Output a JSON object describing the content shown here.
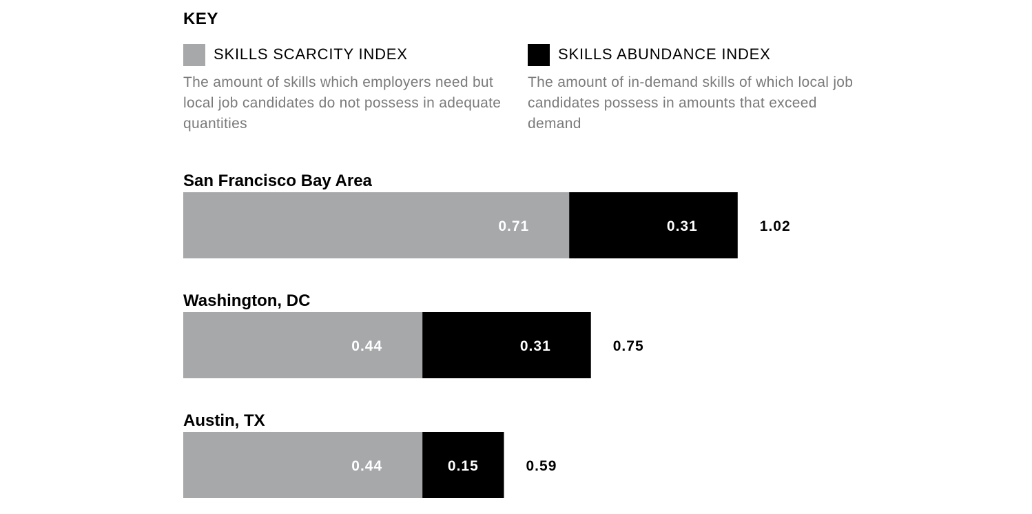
{
  "key": {
    "title": "KEY",
    "items": [
      {
        "label": "SKILLS SCARCITY INDEX",
        "description": "The amount of skills which employers need but local job candidates do not possess in adequate quantities",
        "color": "#a6a8aa"
      },
      {
        "label": "SKILLS ABUNDANCE INDEX",
        "description": "The amount of in-demand skills of which local job candidates possess in amounts that exceed demand",
        "color": "#000000"
      }
    ]
  },
  "chart_data": {
    "type": "bar",
    "orientation": "horizontal",
    "stacked": true,
    "categories": [
      "San Francisco Bay Area",
      "Washington, DC",
      "Austin, TX"
    ],
    "series": [
      {
        "name": "SKILLS SCARCITY INDEX",
        "values": [
          0.71,
          0.44,
          0.44
        ],
        "color": "#a6a8aa"
      },
      {
        "name": "SKILLS ABUNDANCE INDEX",
        "values": [
          0.31,
          0.31,
          0.15
        ],
        "color": "#000000"
      }
    ],
    "totals": [
      1.02,
      0.75,
      0.59
    ],
    "title": "",
    "xlabel": "",
    "ylabel": "",
    "grid": false,
    "legend_position": "top"
  }
}
